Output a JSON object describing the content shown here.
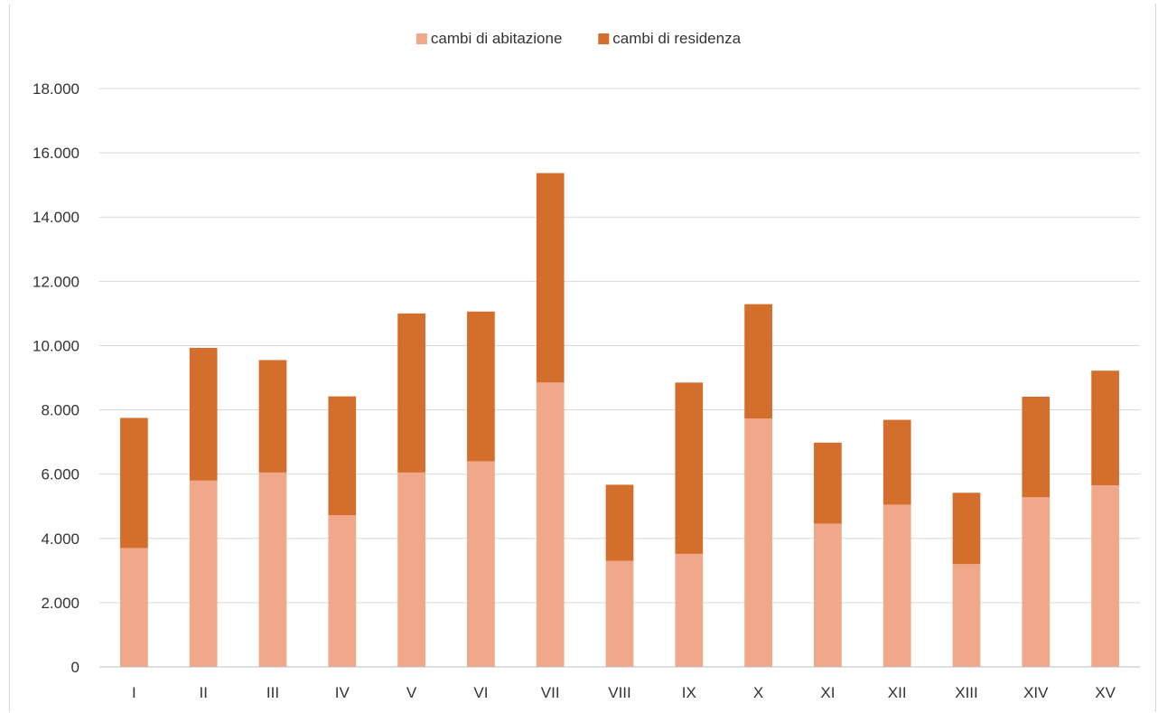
{
  "chart_data": {
    "type": "bar",
    "stacked": true,
    "title": "",
    "xlabel": "",
    "ylabel": "",
    "ylim": [
      0,
      18000
    ],
    "yticks": [
      "0",
      "2.000",
      "4.000",
      "6.000",
      "8.000",
      "10.000",
      "12.000",
      "14.000",
      "16.000",
      "18.000"
    ],
    "grid": true,
    "legend_position": "top",
    "categories": [
      "I",
      "II",
      "III",
      "IV",
      "V",
      "VI",
      "VII",
      "VIII",
      "IX",
      "X",
      "XI",
      "XII",
      "XIII",
      "XIV",
      "XV"
    ],
    "series": [
      {
        "name": "cambi di abitazione",
        "color": "#f0a78a",
        "values": [
          3700,
          5800,
          6050,
          4720,
          6050,
          6400,
          8850,
          3300,
          3520,
          7730,
          4460,
          5050,
          3200,
          5280,
          5650
        ]
      },
      {
        "name": "cambi di residenza",
        "color": "#d46e2c",
        "values": [
          4050,
          4130,
          3500,
          3700,
          4950,
          4660,
          6520,
          2370,
          5330,
          3560,
          2520,
          2640,
          2220,
          3130,
          3570
        ]
      }
    ]
  }
}
